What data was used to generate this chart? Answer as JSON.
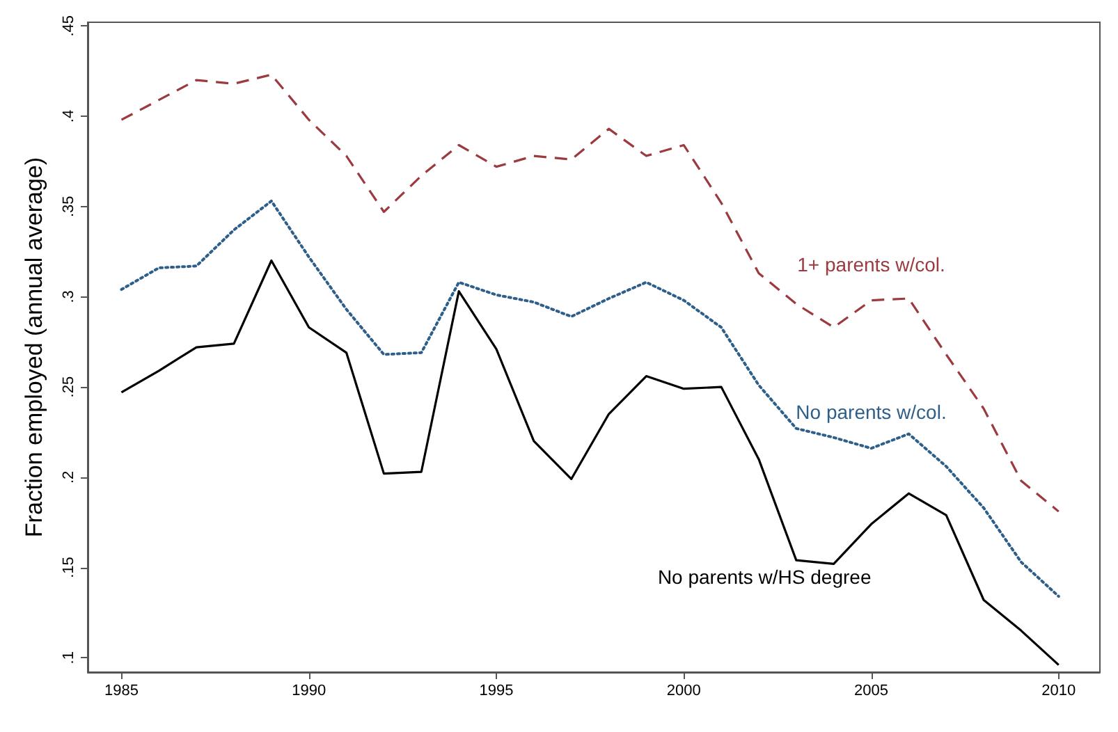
{
  "chart_data": {
    "type": "line",
    "ylabel": "Fraction employed (annual average)",
    "x": [
      1985,
      1986,
      1987,
      1988,
      1989,
      1990,
      1991,
      1992,
      1993,
      1994,
      1995,
      1996,
      1997,
      1998,
      1999,
      2000,
      2001,
      2002,
      2003,
      2004,
      2005,
      2006,
      2007,
      2008,
      2009,
      2010
    ],
    "series": [
      {
        "name": "1+ parents w/col.",
        "color": "#9b3a3f",
        "line_style": "dashed",
        "values": [
          0.398,
          0.409,
          0.42,
          0.418,
          0.423,
          0.398,
          0.378,
          0.347,
          0.367,
          0.384,
          0.372,
          0.378,
          0.376,
          0.393,
          0.378,
          0.384,
          0.352,
          0.313,
          0.296,
          0.283,
          0.298,
          0.299,
          0.268,
          0.238,
          0.198,
          0.181
        ]
      },
      {
        "name": "No parents w/col.",
        "color": "#2d5f8a",
        "line_style": "dotted",
        "values": [
          0.304,
          0.316,
          0.317,
          0.337,
          0.353,
          0.322,
          0.293,
          0.268,
          0.269,
          0.308,
          0.301,
          0.297,
          0.289,
          0.299,
          0.308,
          0.298,
          0.283,
          0.251,
          0.227,
          0.222,
          0.216,
          0.224,
          0.206,
          0.183,
          0.153,
          0.134
        ]
      },
      {
        "name": "No parents w/HS degree",
        "color": "#000000",
        "line_style": "solid",
        "values": [
          0.247,
          0.259,
          0.272,
          0.274,
          0.32,
          0.283,
          0.269,
          0.202,
          0.203,
          0.303,
          0.271,
          0.22,
          0.199,
          0.235,
          0.256,
          0.249,
          0.25,
          0.21,
          0.154,
          0.152,
          0.174,
          0.191,
          0.179,
          0.132,
          0.115,
          0.096
        ]
      }
    ],
    "xlim": [
      1984.1,
      2011.1
    ],
    "xticks": [
      1985,
      1990,
      1995,
      2000,
      2005,
      2010
    ],
    "ylim": [
      0.092,
      0.452
    ],
    "yticks": [
      {
        "value": 0.1,
        "label": ".1"
      },
      {
        "value": 0.15,
        "label": ".15"
      },
      {
        "value": 0.2,
        "label": ".2"
      },
      {
        "value": 0.25,
        "label": ".25"
      },
      {
        "value": 0.3,
        "label": ".3"
      },
      {
        "value": 0.35,
        "label": ".35"
      },
      {
        "value": 0.4,
        "label": ".4"
      },
      {
        "value": 0.45,
        "label": ".45"
      }
    ],
    "grid": false,
    "marker": "none"
  }
}
